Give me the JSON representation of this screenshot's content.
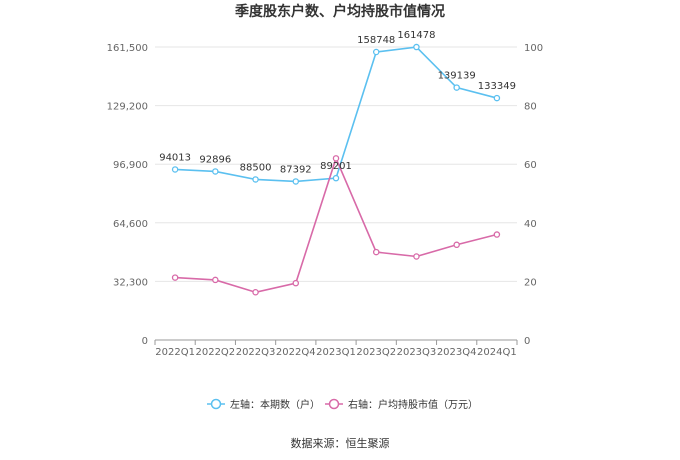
{
  "chart_data": {
    "type": "line",
    "title": "季度股东户数、户均持股市值情况",
    "categories": [
      "2022Q1",
      "2022Q2",
      "2022Q3",
      "2022Q4",
      "2023Q1",
      "2023Q2",
      "2023Q3",
      "2023Q4",
      "2024Q1"
    ],
    "y_left": {
      "ticks": [
        0,
        32300,
        64600,
        96900,
        129200,
        161500
      ],
      "tick_labels": [
        "0",
        "32,300",
        "64,600",
        "96,900",
        "129,200",
        "161,500"
      ],
      "ylim": [
        0,
        161500
      ]
    },
    "y_right": {
      "ticks": [
        0,
        20,
        40,
        60,
        80,
        100
      ],
      "tick_labels": [
        "0",
        "20",
        "40",
        "60",
        "80",
        "100"
      ],
      "ylim": [
        0,
        100
      ]
    },
    "series": [
      {
        "name": "左轴：本期数（户）",
        "axis": "left",
        "color": "#5bc0f0",
        "values": [
          94013,
          92896,
          88500,
          87392,
          89201,
          158748,
          161478,
          139139,
          133349
        ],
        "labels": [
          "94013",
          "92896",
          "88500",
          "87392",
          "89201",
          "158748",
          "161478",
          "139139",
          "133349"
        ]
      },
      {
        "name": "右轴：户均持股市值（万元）",
        "axis": "right",
        "color": "#d86aa8",
        "values": [
          21.3,
          20.5,
          16.3,
          19.4,
          62.0,
          30.0,
          28.5,
          32.5,
          36.0
        ]
      }
    ],
    "grid": true,
    "legend_position": "bottom"
  },
  "source": "数据来源：恒生聚源"
}
